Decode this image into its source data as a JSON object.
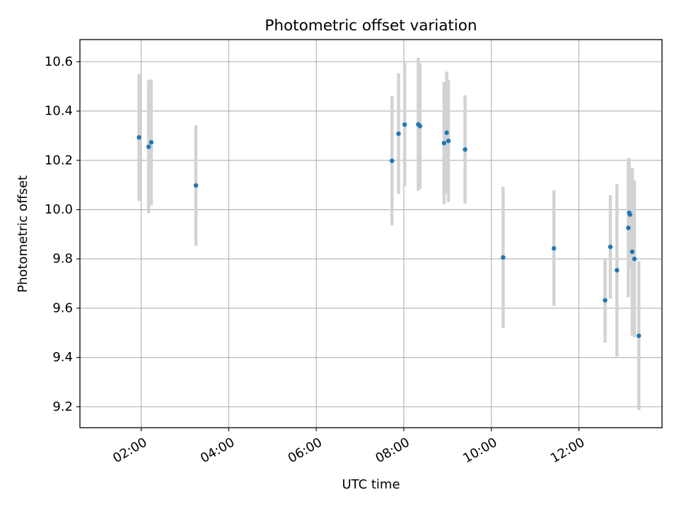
{
  "chart_data": {
    "type": "scatter",
    "title": "Photometric offset variation",
    "xlabel": "UTC time",
    "ylabel": "Photometric offset",
    "x_unit": "hours UTC",
    "xlim": [
      0.6,
      13.9
    ],
    "ylim": [
      9.115,
      10.69
    ],
    "grid": true,
    "x_ticks": [
      {
        "value": 2,
        "label": "02:00"
      },
      {
        "value": 4,
        "label": "04:00"
      },
      {
        "value": 6,
        "label": "06:00"
      },
      {
        "value": 8,
        "label": "08:00"
      },
      {
        "value": 10,
        "label": "10:00"
      },
      {
        "value": 12,
        "label": "12:00"
      }
    ],
    "y_ticks": [
      {
        "value": 9.2,
        "label": "9.2"
      },
      {
        "value": 9.4,
        "label": "9.4"
      },
      {
        "value": 9.6,
        "label": "9.6"
      },
      {
        "value": 9.8,
        "label": "9.8"
      },
      {
        "value": 10.0,
        "label": "10.0"
      },
      {
        "value": 10.2,
        "label": "10.2"
      },
      {
        "value": 10.4,
        "label": "10.4"
      },
      {
        "value": 10.6,
        "label": "10.6"
      }
    ],
    "colors": {
      "points": "#1f77b4",
      "errorbars": "#d3d3d3",
      "grid": "#b0b0b0"
    },
    "points": [
      {
        "x": 1.95,
        "y": 10.293,
        "yerr": 0.258
      },
      {
        "x": 2.17,
        "y": 10.255,
        "yerr": 0.27
      },
      {
        "x": 2.23,
        "y": 10.273,
        "yerr": 0.255
      },
      {
        "x": 3.25,
        "y": 10.098,
        "yerr": 0.245
      },
      {
        "x": 7.73,
        "y": 10.198,
        "yerr": 0.262
      },
      {
        "x": 7.88,
        "y": 10.308,
        "yerr": 0.245
      },
      {
        "x": 8.02,
        "y": 10.345,
        "yerr": 0.25
      },
      {
        "x": 8.33,
        "y": 10.346,
        "yerr": 0.27
      },
      {
        "x": 8.37,
        "y": 10.339,
        "yerr": 0.255
      },
      {
        "x": 8.92,
        "y": 10.27,
        "yerr": 0.248
      },
      {
        "x": 8.98,
        "y": 10.312,
        "yerr": 0.248
      },
      {
        "x": 9.02,
        "y": 10.279,
        "yerr": 0.248
      },
      {
        "x": 9.4,
        "y": 10.244,
        "yerr": 0.22
      },
      {
        "x": 10.27,
        "y": 9.806,
        "yerr": 0.287
      },
      {
        "x": 11.43,
        "y": 9.843,
        "yerr": 0.235
      },
      {
        "x": 12.6,
        "y": 9.632,
        "yerr": 0.172
      },
      {
        "x": 12.72,
        "y": 9.849,
        "yerr": 0.21
      },
      {
        "x": 12.87,
        "y": 9.754,
        "yerr": 0.35
      },
      {
        "x": 13.13,
        "y": 9.926,
        "yerr": 0.282
      },
      {
        "x": 13.15,
        "y": 9.987,
        "yerr": 0.223
      },
      {
        "x": 13.17,
        "y": 9.98,
        "yerr": 0.19
      },
      {
        "x": 13.22,
        "y": 9.829,
        "yerr": 0.34
      },
      {
        "x": 13.27,
        "y": 9.8,
        "yerr": 0.318
      },
      {
        "x": 13.37,
        "y": 9.488,
        "yerr": 0.302
      }
    ]
  }
}
